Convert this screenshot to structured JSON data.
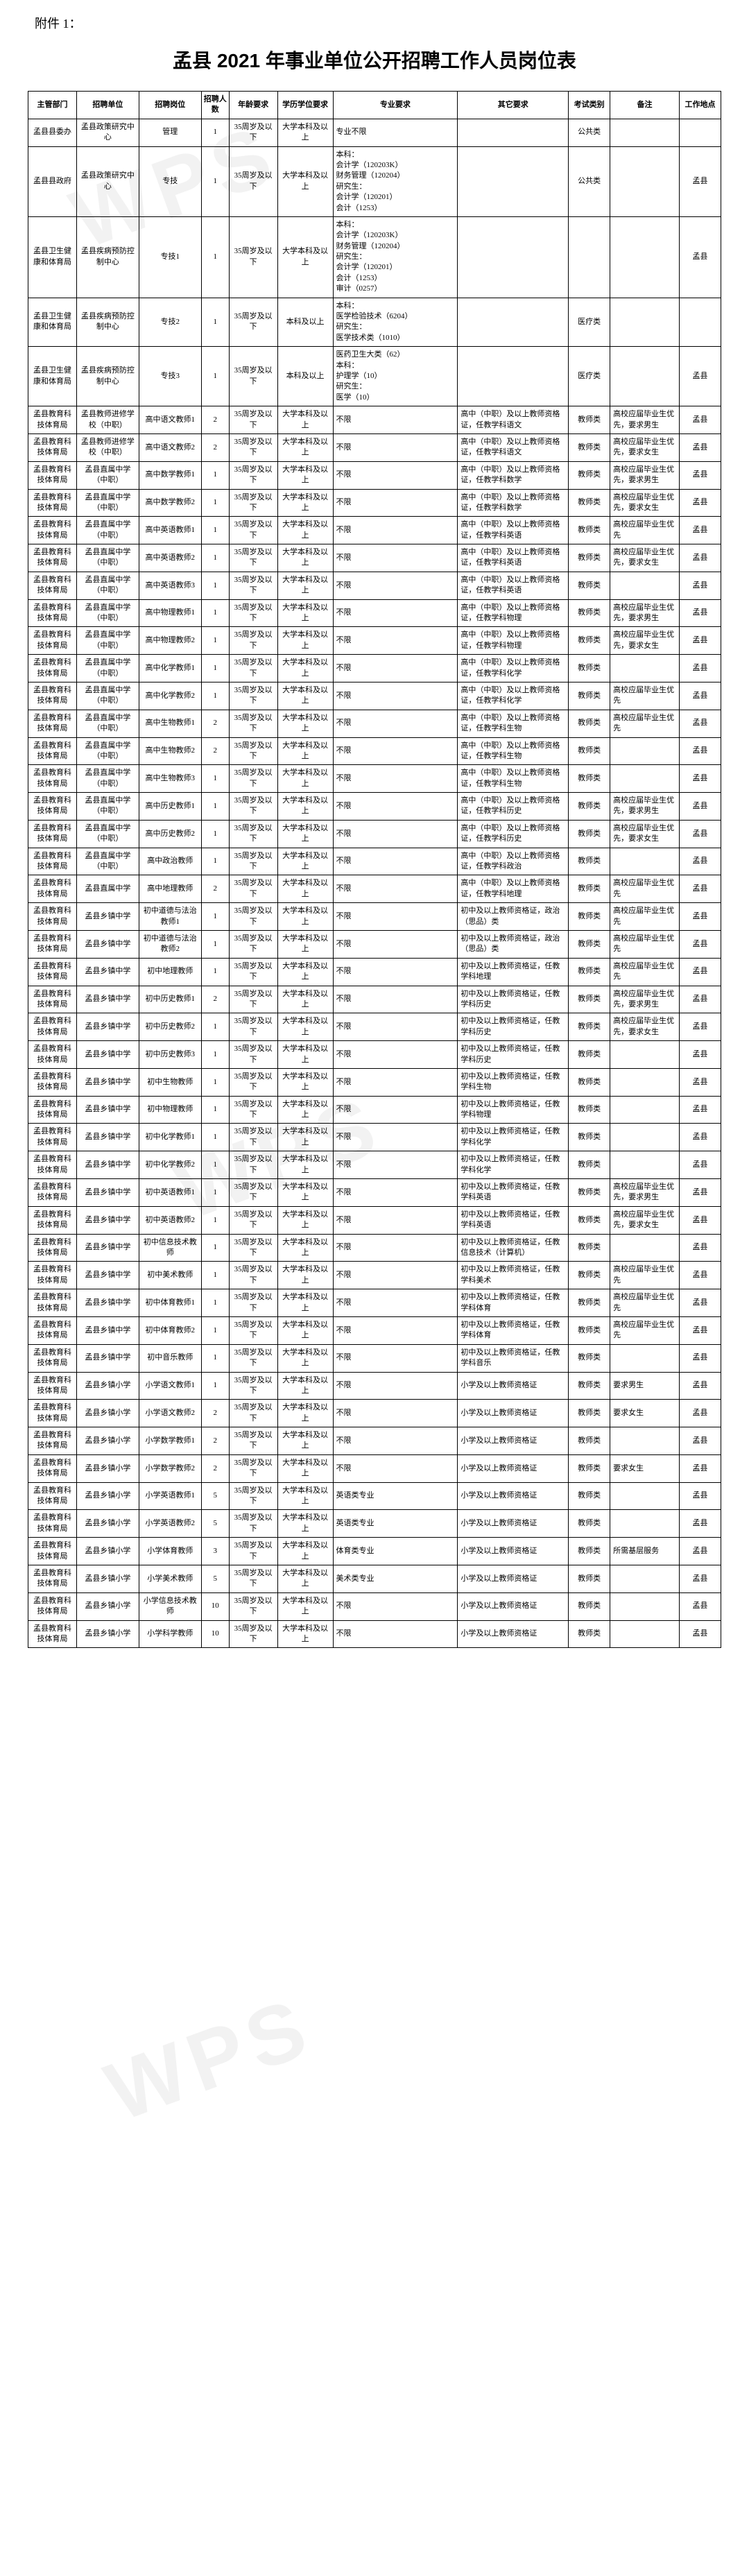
{
  "attachment_label": "附件 1：",
  "title": "孟县 2021 年事业单位公开招聘工作人员岗位表",
  "watermark_text": "WPS",
  "columns": [
    "主管部门",
    "招聘单位",
    "招聘岗位",
    "招聘人数",
    "年龄要求",
    "学历学位要求",
    "专业要求",
    "其它要求",
    "考试类别",
    "备注",
    "工作地点"
  ],
  "rows": [
    {
      "dept": "孟县县委办",
      "unit": "孟县政策研究中心",
      "post": "管理",
      "num": "1",
      "age": "35周岁及以下",
      "edu": "大学本科及以上",
      "major": "专业不限",
      "other": "",
      "exam": "公共类",
      "remark": "",
      "place": ""
    },
    {
      "dept": "孟县县政府",
      "unit": "孟县政策研究中心",
      "post": "专技",
      "num": "1",
      "age": "35周岁及以下",
      "edu": "大学本科及以上",
      "major": "本科：\n会计学（120203K）\n财务管理（120204）\n研究生：\n会计学（120201）\n会计（1253）",
      "other": "",
      "exam": "公共类",
      "remark": "",
      "place": "孟县"
    },
    {
      "dept": "孟县卫生健康和体育局",
      "unit": "孟县疾病预防控制中心",
      "post": "专技1",
      "num": "1",
      "age": "35周岁及以下",
      "edu": "大学本科及以上",
      "major": "本科：\n会计学（120203K）\n财务管理（120204）\n研究生：\n会计学（120201）\n会计（1253）\n审计（0257）",
      "other": "",
      "exam": "",
      "remark": "",
      "place": "孟县"
    },
    {
      "dept": "孟县卫生健康和体育局",
      "unit": "孟县疾病预防控制中心",
      "post": "专技2",
      "num": "1",
      "age": "35周岁及以下",
      "edu": "本科及以上",
      "major": "本科：\n医学检验技术（6204）\n研究生：\n医学技术类（1010）",
      "other": "",
      "exam": "医疗类",
      "remark": "",
      "place": ""
    },
    {
      "dept": "孟县卫生健康和体育局",
      "unit": "孟县疾病预防控制中心",
      "post": "专技3",
      "num": "1",
      "age": "35周岁及以下",
      "edu": "本科及以上",
      "major": "医药卫生大类（62）\n本科：\n护理学（10）\n研究生：\n医学（10）",
      "other": "",
      "exam": "医疗类",
      "remark": "",
      "place": "孟县"
    },
    {
      "dept": "孟县教育科技体育局",
      "unit": "孟县教师进修学校（中职）",
      "post": "高中语文教师1",
      "num": "2",
      "age": "35周岁及以下",
      "edu": "大学本科及以上",
      "major": "不限",
      "other": "高中（中职）及以上教师资格证，任教学科语文",
      "exam": "教师类",
      "remark": "高校应届毕业生优先，要求男生",
      "place": "孟县"
    },
    {
      "dept": "孟县教育科技体育局",
      "unit": "孟县教师进修学校（中职）",
      "post": "高中语文教师2",
      "num": "2",
      "age": "35周岁及以下",
      "edu": "大学本科及以上",
      "major": "不限",
      "other": "高中（中职）及以上教师资格证，任教学科语文",
      "exam": "教师类",
      "remark": "高校应届毕业生优先，要求女生",
      "place": "孟县"
    },
    {
      "dept": "孟县教育科技体育局",
      "unit": "孟县直属中学（中职）",
      "post": "高中数学教师1",
      "num": "1",
      "age": "35周岁及以下",
      "edu": "大学本科及以上",
      "major": "不限",
      "other": "高中（中职）及以上教师资格证，任教学科数学",
      "exam": "教师类",
      "remark": "高校应届毕业生优先，要求男生",
      "place": "孟县"
    },
    {
      "dept": "孟县教育科技体育局",
      "unit": "孟县直属中学（中职）",
      "post": "高中数学教师2",
      "num": "1",
      "age": "35周岁及以下",
      "edu": "大学本科及以上",
      "major": "不限",
      "other": "高中（中职）及以上教师资格证，任教学科数学",
      "exam": "教师类",
      "remark": "高校应届毕业生优先，要求女生",
      "place": "孟县"
    },
    {
      "dept": "孟县教育科技体育局",
      "unit": "孟县直属中学（中职）",
      "post": "高中英语教师1",
      "num": "1",
      "age": "35周岁及以下",
      "edu": "大学本科及以上",
      "major": "不限",
      "other": "高中（中职）及以上教师资格证，任教学科英语",
      "exam": "教师类",
      "remark": "高校应届毕业生优先",
      "place": "孟县"
    },
    {
      "dept": "孟县教育科技体育局",
      "unit": "孟县直属中学（中职）",
      "post": "高中英语教师2",
      "num": "1",
      "age": "35周岁及以下",
      "edu": "大学本科及以上",
      "major": "不限",
      "other": "高中（中职）及以上教师资格证，任教学科英语",
      "exam": "教师类",
      "remark": "高校应届毕业生优先，要求女生",
      "place": "孟县"
    },
    {
      "dept": "孟县教育科技体育局",
      "unit": "孟县直属中学（中职）",
      "post": "高中英语教师3",
      "num": "1",
      "age": "35周岁及以下",
      "edu": "大学本科及以上",
      "major": "不限",
      "other": "高中（中职）及以上教师资格证，任教学科英语",
      "exam": "教师类",
      "remark": "",
      "place": "孟县"
    },
    {
      "dept": "孟县教育科技体育局",
      "unit": "孟县直属中学（中职）",
      "post": "高中物理教师1",
      "num": "1",
      "age": "35周岁及以下",
      "edu": "大学本科及以上",
      "major": "不限",
      "other": "高中（中职）及以上教师资格证，任教学科物理",
      "exam": "教师类",
      "remark": "高校应届毕业生优先，要求男生",
      "place": "孟县"
    },
    {
      "dept": "孟县教育科技体育局",
      "unit": "孟县直属中学（中职）",
      "post": "高中物理教师2",
      "num": "1",
      "age": "35周岁及以下",
      "edu": "大学本科及以上",
      "major": "不限",
      "other": "高中（中职）及以上教师资格证，任教学科物理",
      "exam": "教师类",
      "remark": "高校应届毕业生优先，要求女生",
      "place": "孟县"
    },
    {
      "dept": "孟县教育科技体育局",
      "unit": "孟县直属中学（中职）",
      "post": "高中化学教师1",
      "num": "1",
      "age": "35周岁及以下",
      "edu": "大学本科及以上",
      "major": "不限",
      "other": "高中（中职）及以上教师资格证，任教学科化学",
      "exam": "教师类",
      "remark": "",
      "place": "孟县"
    },
    {
      "dept": "孟县教育科技体育局",
      "unit": "孟县直属中学（中职）",
      "post": "高中化学教师2",
      "num": "1",
      "age": "35周岁及以下",
      "edu": "大学本科及以上",
      "major": "不限",
      "other": "高中（中职）及以上教师资格证，任教学科化学",
      "exam": "教师类",
      "remark": "高校应届毕业生优先",
      "place": "孟县"
    },
    {
      "dept": "孟县教育科技体育局",
      "unit": "孟县直属中学（中职）",
      "post": "高中生物教师1",
      "num": "2",
      "age": "35周岁及以下",
      "edu": "大学本科及以上",
      "major": "不限",
      "other": "高中（中职）及以上教师资格证，任教学科生物",
      "exam": "教师类",
      "remark": "高校应届毕业生优先",
      "place": "孟县"
    },
    {
      "dept": "孟县教育科技体育局",
      "unit": "孟县直属中学（中职）",
      "post": "高中生物教师2",
      "num": "2",
      "age": "35周岁及以下",
      "edu": "大学本科及以上",
      "major": "不限",
      "other": "高中（中职）及以上教师资格证，任教学科生物",
      "exam": "教师类",
      "remark": "",
      "place": "孟县"
    },
    {
      "dept": "孟县教育科技体育局",
      "unit": "孟县直属中学（中职）",
      "post": "高中生物教师3",
      "num": "1",
      "age": "35周岁及以下",
      "edu": "大学本科及以上",
      "major": "不限",
      "other": "高中（中职）及以上教师资格证，任教学科生物",
      "exam": "教师类",
      "remark": "",
      "place": "孟县"
    },
    {
      "dept": "孟县教育科技体育局",
      "unit": "孟县直属中学（中职）",
      "post": "高中历史教师1",
      "num": "1",
      "age": "35周岁及以下",
      "edu": "大学本科及以上",
      "major": "不限",
      "other": "高中（中职）及以上教师资格证，任教学科历史",
      "exam": "教师类",
      "remark": "高校应届毕业生优先，要求男生",
      "place": "孟县"
    },
    {
      "dept": "孟县教育科技体育局",
      "unit": "孟县直属中学（中职）",
      "post": "高中历史教师2",
      "num": "1",
      "age": "35周岁及以下",
      "edu": "大学本科及以上",
      "major": "不限",
      "other": "高中（中职）及以上教师资格证，任教学科历史",
      "exam": "教师类",
      "remark": "高校应届毕业生优先，要求女生",
      "place": "孟县"
    },
    {
      "dept": "孟县教育科技体育局",
      "unit": "孟县直属中学（中职）",
      "post": "高中政治教师",
      "num": "1",
      "age": "35周岁及以下",
      "edu": "大学本科及以上",
      "major": "不限",
      "other": "高中（中职）及以上教师资格证，任教学科政治",
      "exam": "教师类",
      "remark": "",
      "place": "孟县"
    },
    {
      "dept": "孟县教育科技体育局",
      "unit": "孟县直属中学",
      "post": "高中地理教师",
      "num": "2",
      "age": "35周岁及以下",
      "edu": "大学本科及以上",
      "major": "不限",
      "other": "高中（中职）及以上教师资格证，任教学科地理",
      "exam": "教师类",
      "remark": "高校应届毕业生优先",
      "place": "孟县"
    },
    {
      "dept": "孟县教育科技体育局",
      "unit": "孟县乡镇中学",
      "post": "初中道德与法治教师1",
      "num": "1",
      "age": "35周岁及以下",
      "edu": "大学本科及以上",
      "major": "不限",
      "other": "初中及以上教师资格证，政治（思品）类",
      "exam": "教师类",
      "remark": "高校应届毕业生优先",
      "place": "孟县"
    },
    {
      "dept": "孟县教育科技体育局",
      "unit": "孟县乡镇中学",
      "post": "初中道德与法治教师2",
      "num": "1",
      "age": "35周岁及以下",
      "edu": "大学本科及以上",
      "major": "不限",
      "other": "初中及以上教师资格证，政治（思品）类",
      "exam": "教师类",
      "remark": "高校应届毕业生优先",
      "place": "孟县"
    },
    {
      "dept": "孟县教育科技体育局",
      "unit": "孟县乡镇中学",
      "post": "初中地理教师",
      "num": "1",
      "age": "35周岁及以下",
      "edu": "大学本科及以上",
      "major": "不限",
      "other": "初中及以上教师资格证，任教学科地理",
      "exam": "教师类",
      "remark": "高校应届毕业生优先",
      "place": "孟县"
    },
    {
      "dept": "孟县教育科技体育局",
      "unit": "孟县乡镇中学",
      "post": "初中历史教师1",
      "num": "2",
      "age": "35周岁及以下",
      "edu": "大学本科及以上",
      "major": "不限",
      "other": "初中及以上教师资格证，任教学科历史",
      "exam": "教师类",
      "remark": "高校应届毕业生优先，要求男生",
      "place": "孟县"
    },
    {
      "dept": "孟县教育科技体育局",
      "unit": "孟县乡镇中学",
      "post": "初中历史教师2",
      "num": "1",
      "age": "35周岁及以下",
      "edu": "大学本科及以上",
      "major": "不限",
      "other": "初中及以上教师资格证，任教学科历史",
      "exam": "教师类",
      "remark": "高校应届毕业生优先，要求女生",
      "place": "孟县"
    },
    {
      "dept": "孟县教育科技体育局",
      "unit": "孟县乡镇中学",
      "post": "初中历史教师3",
      "num": "1",
      "age": "35周岁及以下",
      "edu": "大学本科及以上",
      "major": "不限",
      "other": "初中及以上教师资格证，任教学科历史",
      "exam": "教师类",
      "remark": "",
      "place": "孟县"
    },
    {
      "dept": "孟县教育科技体育局",
      "unit": "孟县乡镇中学",
      "post": "初中生物教师",
      "num": "1",
      "age": "35周岁及以下",
      "edu": "大学本科及以上",
      "major": "不限",
      "other": "初中及以上教师资格证，任教学科生物",
      "exam": "教师类",
      "remark": "",
      "place": "孟县"
    },
    {
      "dept": "孟县教育科技体育局",
      "unit": "孟县乡镇中学",
      "post": "初中物理教师",
      "num": "1",
      "age": "35周岁及以下",
      "edu": "大学本科及以上",
      "major": "不限",
      "other": "初中及以上教师资格证，任教学科物理",
      "exam": "教师类",
      "remark": "",
      "place": "孟县"
    },
    {
      "dept": "孟县教育科技体育局",
      "unit": "孟县乡镇中学",
      "post": "初中化学教师1",
      "num": "1",
      "age": "35周岁及以下",
      "edu": "大学本科及以上",
      "major": "不限",
      "other": "初中及以上教师资格证，任教学科化学",
      "exam": "教师类",
      "remark": "",
      "place": "孟县"
    },
    {
      "dept": "孟县教育科技体育局",
      "unit": "孟县乡镇中学",
      "post": "初中化学教师2",
      "num": "1",
      "age": "35周岁及以下",
      "edu": "大学本科及以上",
      "major": "不限",
      "other": "初中及以上教师资格证，任教学科化学",
      "exam": "教师类",
      "remark": "",
      "place": "孟县"
    },
    {
      "dept": "孟县教育科技体育局",
      "unit": "孟县乡镇中学",
      "post": "初中英语教师1",
      "num": "1",
      "age": "35周岁及以下",
      "edu": "大学本科及以上",
      "major": "不限",
      "other": "初中及以上教师资格证，任教学科英语",
      "exam": "教师类",
      "remark": "高校应届毕业生优先，要求男生",
      "place": "孟县"
    },
    {
      "dept": "孟县教育科技体育局",
      "unit": "孟县乡镇中学",
      "post": "初中英语教师2",
      "num": "1",
      "age": "35周岁及以下",
      "edu": "大学本科及以上",
      "major": "不限",
      "other": "初中及以上教师资格证，任教学科英语",
      "exam": "教师类",
      "remark": "高校应届毕业生优先，要求女生",
      "place": "孟县"
    },
    {
      "dept": "孟县教育科技体育局",
      "unit": "孟县乡镇中学",
      "post": "初中信息技术教师",
      "num": "1",
      "age": "35周岁及以下",
      "edu": "大学本科及以上",
      "major": "不限",
      "other": "初中及以上教师资格证，任教信息技术（计算机）",
      "exam": "教师类",
      "remark": "",
      "place": "孟县"
    },
    {
      "dept": "孟县教育科技体育局",
      "unit": "孟县乡镇中学",
      "post": "初中美术教师",
      "num": "1",
      "age": "35周岁及以下",
      "edu": "大学本科及以上",
      "major": "不限",
      "other": "初中及以上教师资格证，任教学科美术",
      "exam": "教师类",
      "remark": "高校应届毕业生优先",
      "place": "孟县"
    },
    {
      "dept": "孟县教育科技体育局",
      "unit": "孟县乡镇中学",
      "post": "初中体育教师1",
      "num": "1",
      "age": "35周岁及以下",
      "edu": "大学本科及以上",
      "major": "不限",
      "other": "初中及以上教师资格证，任教学科体育",
      "exam": "教师类",
      "remark": "高校应届毕业生优先",
      "place": "孟县"
    },
    {
      "dept": "孟县教育科技体育局",
      "unit": "孟县乡镇中学",
      "post": "初中体育教师2",
      "num": "1",
      "age": "35周岁及以下",
      "edu": "大学本科及以上",
      "major": "不限",
      "other": "初中及以上教师资格证，任教学科体育",
      "exam": "教师类",
      "remark": "高校应届毕业生优先",
      "place": "孟县"
    },
    {
      "dept": "孟县教育科技体育局",
      "unit": "孟县乡镇中学",
      "post": "初中音乐教师",
      "num": "1",
      "age": "35周岁及以下",
      "edu": "大学本科及以上",
      "major": "不限",
      "other": "初中及以上教师资格证，任教学科音乐",
      "exam": "教师类",
      "remark": "",
      "place": "孟县"
    },
    {
      "dept": "孟县教育科技体育局",
      "unit": "孟县乡镇小学",
      "post": "小学语文教师1",
      "num": "1",
      "age": "35周岁及以下",
      "edu": "大学本科及以上",
      "major": "不限",
      "other": "小学及以上教师资格证",
      "exam": "教师类",
      "remark": "要求男生",
      "place": "孟县"
    },
    {
      "dept": "孟县教育科技体育局",
      "unit": "孟县乡镇小学",
      "post": "小学语文教师2",
      "num": "2",
      "age": "35周岁及以下",
      "edu": "大学本科及以上",
      "major": "不限",
      "other": "小学及以上教师资格证",
      "exam": "教师类",
      "remark": "要求女生",
      "place": "孟县"
    },
    {
      "dept": "孟县教育科技体育局",
      "unit": "孟县乡镇小学",
      "post": "小学数学教师1",
      "num": "2",
      "age": "35周岁及以下",
      "edu": "大学本科及以上",
      "major": "不限",
      "other": "小学及以上教师资格证",
      "exam": "教师类",
      "remark": "",
      "place": "孟县"
    },
    {
      "dept": "孟县教育科技体育局",
      "unit": "孟县乡镇小学",
      "post": "小学数学教师2",
      "num": "2",
      "age": "35周岁及以下",
      "edu": "大学本科及以上",
      "major": "不限",
      "other": "小学及以上教师资格证",
      "exam": "教师类",
      "remark": "要求女生",
      "place": "孟县"
    },
    {
      "dept": "孟县教育科技体育局",
      "unit": "孟县乡镇小学",
      "post": "小学英语教师1",
      "num": "5",
      "age": "35周岁及以下",
      "edu": "大学本科及以上",
      "major": "英语类专业",
      "other": "小学及以上教师资格证",
      "exam": "教师类",
      "remark": "",
      "place": "孟县"
    },
    {
      "dept": "孟县教育科技体育局",
      "unit": "孟县乡镇小学",
      "post": "小学英语教师2",
      "num": "5",
      "age": "35周岁及以下",
      "edu": "大学本科及以上",
      "major": "英语类专业",
      "other": "小学及以上教师资格证",
      "exam": "教师类",
      "remark": "",
      "place": "孟县"
    },
    {
      "dept": "孟县教育科技体育局",
      "unit": "孟县乡镇小学",
      "post": "小学体育教师",
      "num": "3",
      "age": "35周岁及以下",
      "edu": "大学本科及以上",
      "major": "体育类专业",
      "other": "小学及以上教师资格证",
      "exam": "教师类",
      "remark": "所需基层服务",
      "place": "孟县"
    },
    {
      "dept": "孟县教育科技体育局",
      "unit": "孟县乡镇小学",
      "post": "小学美术教师",
      "num": "5",
      "age": "35周岁及以下",
      "edu": "大学本科及以上",
      "major": "美术类专业",
      "other": "小学及以上教师资格证",
      "exam": "教师类",
      "remark": "",
      "place": "孟县"
    },
    {
      "dept": "孟县教育科技体育局",
      "unit": "孟县乡镇小学",
      "post": "小学信息技术教师",
      "num": "10",
      "age": "35周岁及以下",
      "edu": "大学本科及以上",
      "major": "不限",
      "other": "小学及以上教师资格证",
      "exam": "教师类",
      "remark": "",
      "place": "孟县"
    },
    {
      "dept": "孟县教育科技体育局",
      "unit": "孟县乡镇小学",
      "post": "小学科学教师",
      "num": "10",
      "age": "35周岁及以下",
      "edu": "大学本科及以上",
      "major": "不限",
      "other": "小学及以上教师资格证",
      "exam": "教师类",
      "remark": "",
      "place": "孟县"
    }
  ]
}
